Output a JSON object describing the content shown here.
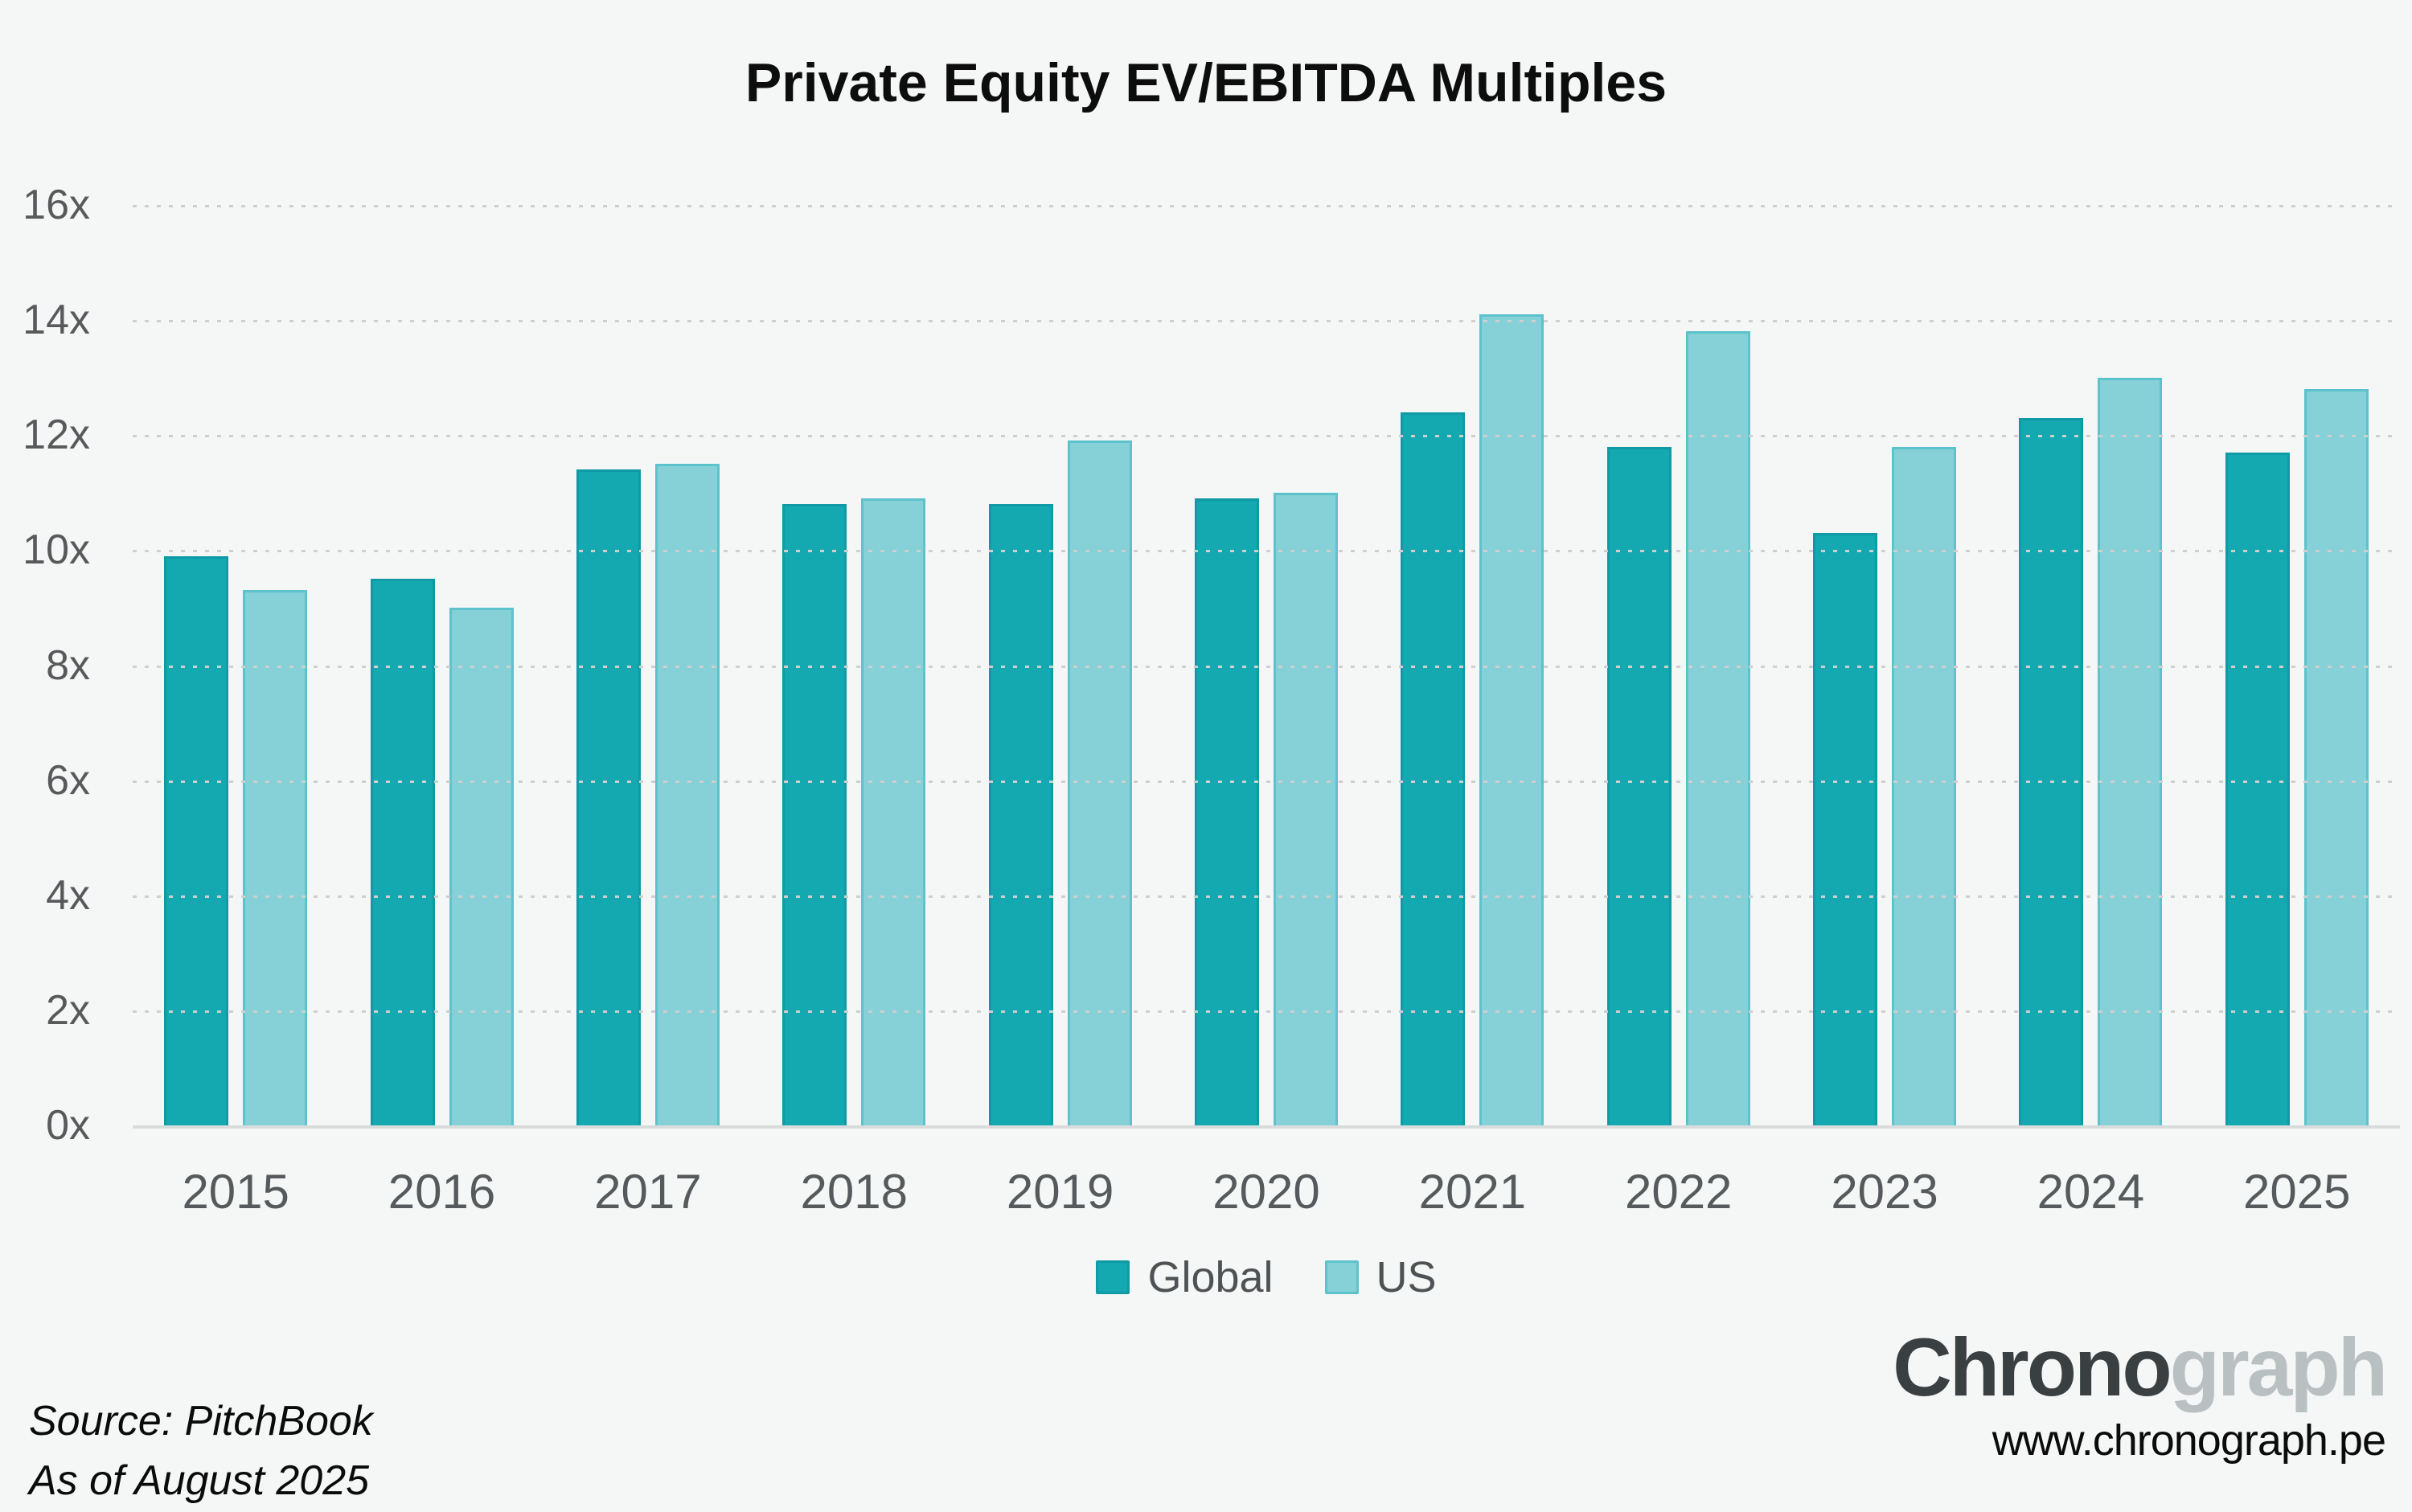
{
  "page": {
    "background": "#f5f6f6"
  },
  "chart_data": {
    "type": "bar",
    "title": "Private Equity EV/EBITDA Multiples",
    "categories": [
      "2015",
      "2016",
      "2017",
      "2018",
      "2019",
      "2020",
      "2021",
      "2022",
      "2023",
      "2024",
      "2025"
    ],
    "series": [
      {
        "name": "Global",
        "color": "#14a8b0",
        "border_color": "#0f9aa5",
        "values": [
          9.9,
          9.5,
          11.4,
          10.8,
          10.8,
          10.9,
          12.4,
          11.8,
          10.3,
          12.3,
          11.7
        ]
      },
      {
        "name": "US",
        "color": "#85d1d7",
        "border_color": "#5cc3cc",
        "values": [
          9.3,
          9.0,
          11.5,
          10.9,
          11.9,
          11.0,
          14.1,
          13.8,
          11.8,
          13.0,
          12.8
        ]
      }
    ],
    "xlabel": "",
    "ylabel": "",
    "ylim": [
      0,
      16
    ],
    "ytick_step": 2,
    "ytick_suffix": "x",
    "grid": "horizontal-dotted",
    "legend_position": "bottom-center"
  },
  "footer": {
    "source_line1": "Source: PitchBook",
    "source_line2": "As of August 2025",
    "brand_part1": "Chrono",
    "brand_part2": "graph",
    "brand_url": "www.chronograph.pe"
  }
}
